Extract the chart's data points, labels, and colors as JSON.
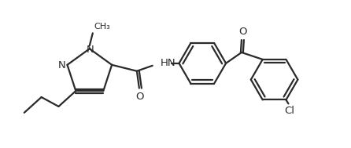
{
  "bg_color": "#ffffff",
  "line_color": "#2a2a2a",
  "line_width": 1.6,
  "font_size": 9.5,
  "figsize": [
    4.46,
    1.89
  ],
  "dpi": 100,
  "xlim": [
    0,
    446
  ],
  "ylim": [
    0,
    189
  ]
}
